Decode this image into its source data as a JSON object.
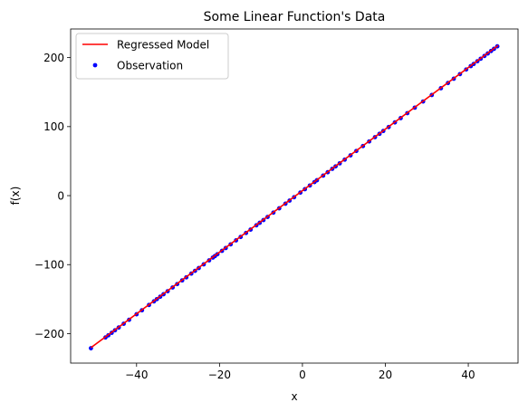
{
  "chart_data": {
    "type": "scatter",
    "title": "Some Linear Function's Data",
    "xlabel": "x",
    "ylabel": "f(x)",
    "xlim": [
      -55.9,
      52.0
    ],
    "ylim": [
      -242.7,
      241.5
    ],
    "grid": false,
    "legend_position": "top-left",
    "x_ticks": [
      -40,
      -20,
      0,
      20,
      40
    ],
    "x_tick_labels": [
      "−40",
      "−20",
      "0",
      "20",
      "40"
    ],
    "y_ticks": [
      -200,
      -100,
      0,
      100,
      200
    ],
    "y_tick_labels": [
      "−200",
      "−100",
      "0",
      "100",
      "200"
    ],
    "series": [
      {
        "name": "Regressed Model",
        "type": "line",
        "color": "#ff0000",
        "x": [
          -51.0,
          47.2
        ],
        "y": [
          -220.3,
          217.7
        ]
      },
      {
        "name": "Observation",
        "type": "scatter",
        "color": "#0000ff",
        "x": [
          -51.0,
          -47.5,
          -46.8,
          -46.0,
          -45.2,
          -44.3,
          -43.1,
          -41.8,
          -40.0,
          -38.7,
          -37.0,
          -35.8,
          -35.1,
          -34.3,
          -33.5,
          -32.5,
          -31.3,
          -30.2,
          -29.0,
          -28.0,
          -26.8,
          -25.9,
          -25.0,
          -23.8,
          -22.5,
          -21.6,
          -21.1,
          -20.5,
          -19.4,
          -18.5,
          -17.3,
          -16.0,
          -14.9,
          -13.6,
          -12.5,
          -11.1,
          -10.3,
          -9.4,
          -8.4,
          -7.0,
          -5.6,
          -4.1,
          -3.1,
          -2.0,
          -0.5,
          0.6,
          1.8,
          2.9,
          3.5,
          5.0,
          6.1,
          7.2,
          8.0,
          9.0,
          10.2,
          11.6,
          13.0,
          14.6,
          16.1,
          17.5,
          18.6,
          19.5,
          20.8,
          22.3,
          23.7,
          25.3,
          27.1,
          29.1,
          31.2,
          33.4,
          35.1,
          36.5,
          38.0,
          39.5,
          40.6,
          41.3,
          42.2,
          43.0,
          43.9,
          44.7,
          45.5,
          46.2,
          47.0
        ],
        "y": [
          -221.1,
          -205.5,
          -202.4,
          -198.8,
          -195.1,
          -191.1,
          -185.7,
          -179.9,
          -171.9,
          -166.1,
          -158.5,
          -153.2,
          -150.0,
          -146.5,
          -142.9,
          -138.5,
          -133.1,
          -128.2,
          -122.8,
          -118.4,
          -113.0,
          -109.0,
          -105.0,
          -99.6,
          -93.8,
          -89.8,
          -87.6,
          -84.9,
          -80.0,
          -76.0,
          -70.6,
          -64.8,
          -59.9,
          -54.1,
          -49.2,
          -43.0,
          -39.4,
          -35.4,
          -30.9,
          -24.6,
          -18.4,
          -11.7,
          -7.2,
          -2.3,
          4.4,
          9.3,
          14.7,
          19.6,
          22.3,
          29.0,
          33.9,
          38.8,
          42.4,
          46.8,
          52.2,
          58.4,
          64.7,
          71.8,
          78.5,
          84.7,
          89.6,
          93.7,
          99.4,
          106.1,
          112.3,
          119.5,
          127.5,
          136.4,
          145.8,
          155.6,
          163.2,
          169.4,
          176.1,
          182.8,
          187.7,
          190.8,
          194.8,
          198.4,
          202.4,
          206.0,
          209.6,
          212.7,
          216.3
        ]
      }
    ]
  }
}
